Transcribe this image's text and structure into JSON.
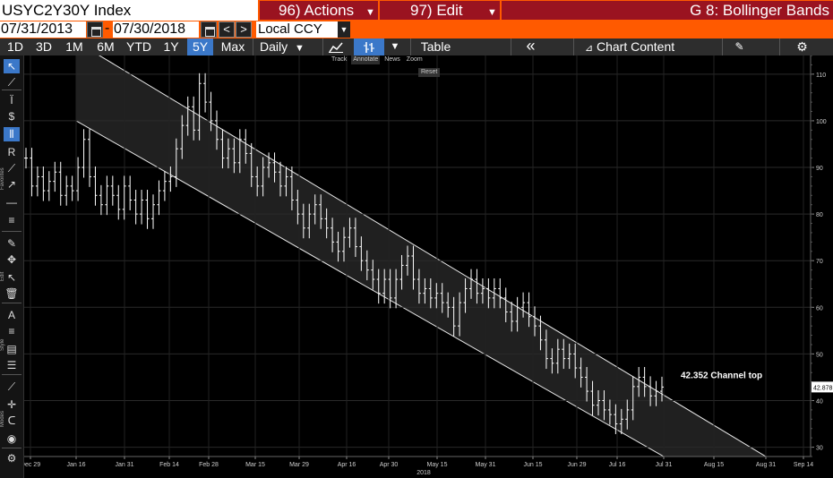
{
  "header": {
    "ticker": "USYC2Y30Y Index",
    "actions": {
      "num": "96)",
      "label": "Actions"
    },
    "edit": {
      "num": "97)",
      "label": "Edit"
    },
    "graph": "G 8: Bollinger Bands"
  },
  "dates": {
    "start": "07/31/2013",
    "separator": "-",
    "end": "07/30/2018",
    "prev": "<",
    "next": ">",
    "currency": "Local CCY"
  },
  "toolbar": {
    "periods": [
      "1D",
      "3D",
      "1M",
      "6M",
      "YTD",
      "1Y",
      "5Y",
      "Max"
    ],
    "active_period": "5Y",
    "frequency": "Daily",
    "table": "Table",
    "collapse": "«",
    "chart_content": "Chart Content"
  },
  "annotate_menu": {
    "track": "Track",
    "annotate": "Annotate",
    "news": "News",
    "zoom": "Zoom",
    "reset": "Reset"
  },
  "left_toolbar": {
    "sections": [
      "Favorites",
      "Edit",
      "Style",
      "Modes"
    ]
  },
  "colors": {
    "orange": "#ff5a00",
    "red_button": "#9a1320",
    "active_blue": "#3b78c9",
    "price_line": "#ffffff",
    "channel_fill": "#3a3a3a"
  },
  "chart_data": {
    "type": "line",
    "y_ticks": [
      "110",
      "100",
      "90",
      "80",
      "70",
      "60",
      "50",
      "40",
      "30"
    ],
    "y_range": [
      28,
      114
    ],
    "x_ticks": [
      "Dec 29",
      "Jan 16",
      "Jan 31",
      "Feb 14",
      "Feb 28",
      "Mar 15",
      "Mar 29",
      "Apr 16",
      "Apr 30",
      "May 15",
      "May 31",
      "Jun 15",
      "Jun 29",
      "Jul 16",
      "Jul 31",
      "Aug 15",
      "Aug 31",
      "Sep 14"
    ],
    "x_year_label": "2018",
    "last_value_label": "42.878",
    "annotation": "42.352 Channel top",
    "channel": {
      "top_start": {
        "date": "Jan 16",
        "value": 117
      },
      "top_end": {
        "date": "Aug 31",
        "value": 28
      },
      "bottom_start": {
        "date": "Jan 16",
        "value": 100
      },
      "bottom_end": {
        "date": "Jul 31",
        "value": 28
      }
    },
    "series": [
      {
        "values": [
          [
            0,
            92
          ],
          [
            1,
            86
          ],
          [
            2,
            88
          ],
          [
            3,
            85
          ],
          [
            4,
            87
          ],
          [
            5,
            89
          ],
          [
            6,
            84
          ],
          [
            7,
            86
          ],
          [
            8,
            85
          ],
          [
            9,
            90
          ],
          [
            10,
            96
          ],
          [
            11,
            88
          ],
          [
            12,
            84
          ],
          [
            13,
            82
          ],
          [
            14,
            86
          ],
          [
            15,
            84
          ],
          [
            16,
            81
          ],
          [
            17,
            86
          ],
          [
            18,
            83
          ],
          [
            19,
            80
          ],
          [
            20,
            83
          ],
          [
            21,
            79
          ],
          [
            22,
            82
          ],
          [
            23,
            85
          ],
          [
            24,
            87
          ],
          [
            25,
            88
          ],
          [
            26,
            94
          ],
          [
            27,
            99
          ],
          [
            28,
            103
          ],
          [
            29,
            98
          ],
          [
            30,
            108
          ],
          [
            31,
            104
          ],
          [
            32,
            100
          ],
          [
            33,
            96
          ],
          [
            34,
            92
          ],
          [
            35,
            94
          ],
          [
            36,
            91
          ],
          [
            37,
            96
          ],
          [
            38,
            93
          ],
          [
            39,
            88
          ],
          [
            40,
            86
          ],
          [
            41,
            90
          ],
          [
            42,
            91
          ],
          [
            43,
            89
          ],
          [
            44,
            86
          ],
          [
            45,
            88
          ],
          [
            46,
            83
          ],
          [
            47,
            80
          ],
          [
            48,
            77
          ],
          [
            49,
            80
          ],
          [
            50,
            82
          ],
          [
            51,
            79
          ],
          [
            52,
            77
          ],
          [
            53,
            74
          ],
          [
            54,
            72
          ],
          [
            55,
            75
          ],
          [
            56,
            77
          ],
          [
            57,
            73
          ],
          [
            58,
            70
          ],
          [
            59,
            68
          ],
          [
            60,
            66
          ],
          [
            61,
            63
          ],
          [
            62,
            66
          ],
          [
            63,
            62
          ],
          [
            64,
            66
          ],
          [
            65,
            69
          ],
          [
            66,
            71
          ],
          [
            67,
            66
          ],
          [
            68,
            63
          ],
          [
            69,
            64
          ],
          [
            70,
            62
          ],
          [
            71,
            63
          ],
          [
            72,
            61
          ],
          [
            73,
            60
          ],
          [
            74,
            56
          ],
          [
            75,
            61
          ],
          [
            76,
            64
          ],
          [
            77,
            66
          ],
          [
            78,
            63
          ],
          [
            79,
            64
          ],
          [
            80,
            62
          ],
          [
            81,
            64
          ],
          [
            82,
            62
          ],
          [
            83,
            59
          ],
          [
            84,
            57
          ],
          [
            85,
            60
          ],
          [
            86,
            61
          ],
          [
            87,
            58
          ],
          [
            88,
            56
          ],
          [
            89,
            53
          ],
          [
            90,
            49
          ],
          [
            91,
            48
          ],
          [
            92,
            51
          ],
          [
            93,
            49
          ],
          [
            94,
            50
          ],
          [
            95,
            47
          ],
          [
            96,
            45
          ],
          [
            97,
            42
          ],
          [
            98,
            39
          ],
          [
            99,
            40
          ],
          [
            100,
            38
          ],
          [
            101,
            37
          ],
          [
            102,
            35
          ],
          [
            103,
            36
          ],
          [
            104,
            38
          ],
          [
            105,
            43
          ],
          [
            106,
            45
          ],
          [
            107,
            43
          ],
          [
            108,
            41
          ],
          [
            109,
            42
          ],
          [
            110,
            42.9
          ]
        ]
      }
    ]
  }
}
